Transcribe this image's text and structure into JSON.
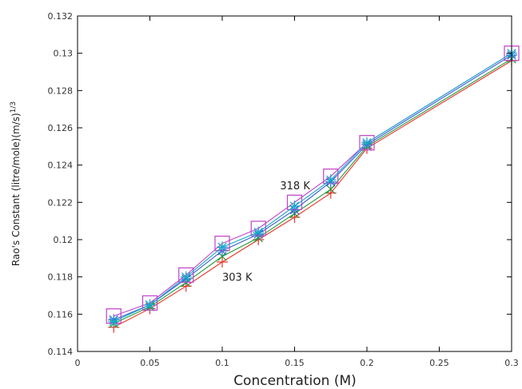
{
  "chart_data": {
    "type": "line",
    "xlabel": "Concentration (M)",
    "ylabel": "Rao's Constant (litre/mole)(m/s)",
    "ylabel_superscript": "1/3",
    "xlim": [
      0,
      0.3
    ],
    "ylim": [
      0.114,
      0.132
    ],
    "xticks": [
      0,
      0.05,
      0.1,
      0.15,
      0.2,
      0.25,
      0.3
    ],
    "xtick_labels": [
      "0",
      "0.05",
      "0.1",
      "0.15",
      "0.2",
      "0.25",
      "0.3"
    ],
    "yticks": [
      0.114,
      0.116,
      0.118,
      0.12,
      0.122,
      0.124,
      0.126,
      0.128,
      0.13,
      0.132
    ],
    "ytick_labels": [
      "0.114",
      "0.116",
      "0.118",
      "0.12",
      "0.122",
      "0.124",
      "0.126",
      "0.128",
      "0.13",
      "0.132"
    ],
    "grid": false,
    "legend": "none",
    "annotations": [
      {
        "text": "318 K",
        "x": 0.14,
        "y": 0.1227
      },
      {
        "text": "303 K",
        "x": 0.1,
        "y": 0.1178
      }
    ],
    "x": [
      0.025,
      0.05,
      0.075,
      0.1,
      0.125,
      0.15,
      0.175,
      0.2,
      0.3
    ],
    "series": [
      {
        "marker": "plus",
        "color": "#e8352a",
        "values": [
          0.1153,
          0.1163,
          0.1175,
          0.1188,
          0.12,
          0.1212,
          0.1225,
          0.1249,
          0.1296
        ]
      },
      {
        "marker": "cross",
        "color": "#1f9c3a",
        "values": [
          0.1155,
          0.1164,
          0.1177,
          0.1191,
          0.1201,
          0.1214,
          0.1227,
          0.125,
          0.1297
        ]
      },
      {
        "marker": "star",
        "color": "#3a5fd8",
        "values": [
          0.1157,
          0.1165,
          0.1179,
          0.1194,
          0.1203,
          0.1216,
          0.1231,
          0.1251,
          0.1299
        ]
      },
      {
        "marker": "square",
        "color": "#c040c8",
        "values": [
          0.1159,
          0.1166,
          0.1181,
          0.1198,
          0.1206,
          0.122,
          0.1234,
          0.1252,
          0.13
        ]
      },
      {
        "marker": "star",
        "color": "#18a8c8",
        "values": [
          0.1156,
          0.1165,
          0.118,
          0.1196,
          0.1204,
          0.1218,
          0.1232,
          0.1252,
          0.13
        ]
      }
    ]
  }
}
